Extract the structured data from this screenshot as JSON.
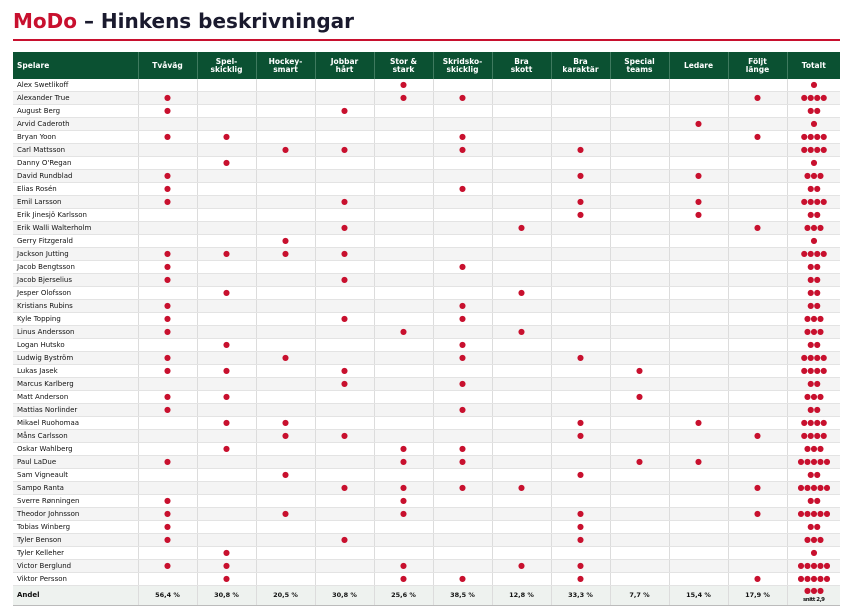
{
  "title": {
    "brand": "MoDo",
    "rest": " – Hinkens beskrivningar"
  },
  "columns": [
    "Spelare",
    "Tvåväg",
    "Spel-\nskicklig",
    "Hockey-\nsmart",
    "Jobbar\nhårt",
    "Stor &\nstark",
    "Skridsko-\nskicklig",
    "Bra\nskott",
    "Bra\nkaraktär",
    "Special\nteams",
    "Ledare",
    "Följt\nlänge",
    "Totalt"
  ],
  "dot_glyph": "●",
  "players": [
    {
      "name": "Alex Swetlikoff",
      "m": [
        0,
        0,
        0,
        0,
        1,
        0,
        0,
        0,
        0,
        0,
        0
      ]
    },
    {
      "name": "Alexander True",
      "m": [
        1,
        0,
        0,
        0,
        1,
        1,
        0,
        0,
        0,
        0,
        1
      ]
    },
    {
      "name": "August Berg",
      "m": [
        1,
        0,
        0,
        1,
        0,
        0,
        0,
        0,
        0,
        0,
        0
      ]
    },
    {
      "name": "Arvid Caderoth",
      "m": [
        0,
        0,
        0,
        0,
        0,
        0,
        0,
        0,
        0,
        1,
        0
      ]
    },
    {
      "name": "Bryan Yoon",
      "m": [
        1,
        1,
        0,
        0,
        0,
        1,
        0,
        0,
        0,
        0,
        1
      ]
    },
    {
      "name": "Carl Mattsson",
      "m": [
        0,
        0,
        1,
        1,
        0,
        1,
        0,
        1,
        0,
        0,
        0
      ]
    },
    {
      "name": "Danny O'Regan",
      "m": [
        0,
        1,
        0,
        0,
        0,
        0,
        0,
        0,
        0,
        0,
        0
      ]
    },
    {
      "name": "David Rundblad",
      "m": [
        1,
        0,
        0,
        0,
        0,
        0,
        0,
        1,
        0,
        1,
        0
      ]
    },
    {
      "name": "Elias Rosén",
      "m": [
        1,
        0,
        0,
        0,
        0,
        1,
        0,
        0,
        0,
        0,
        0
      ]
    },
    {
      "name": "Emil Larsson",
      "m": [
        1,
        0,
        0,
        1,
        0,
        0,
        0,
        1,
        0,
        1,
        0
      ]
    },
    {
      "name": "Erik Jinesjö Karlsson",
      "m": [
        0,
        0,
        0,
        0,
        0,
        0,
        0,
        1,
        0,
        1,
        0
      ]
    },
    {
      "name": "Erik Walli Walterholm",
      "m": [
        0,
        0,
        0,
        1,
        0,
        0,
        1,
        0,
        0,
        0,
        1
      ]
    },
    {
      "name": "Gerry Fitzgerald",
      "m": [
        0,
        0,
        1,
        0,
        0,
        0,
        0,
        0,
        0,
        0,
        0
      ]
    },
    {
      "name": "Jackson Jutting",
      "m": [
        1,
        1,
        1,
        1,
        0,
        0,
        0,
        0,
        0,
        0,
        0
      ]
    },
    {
      "name": "Jacob Bengtsson",
      "m": [
        1,
        0,
        0,
        0,
        0,
        1,
        0,
        0,
        0,
        0,
        0
      ]
    },
    {
      "name": "Jacob Bjerselius",
      "m": [
        1,
        0,
        0,
        1,
        0,
        0,
        0,
        0,
        0,
        0,
        0
      ]
    },
    {
      "name": "Jesper Olofsson",
      "m": [
        0,
        1,
        0,
        0,
        0,
        0,
        1,
        0,
        0,
        0,
        0
      ]
    },
    {
      "name": "Kristians Rubins",
      "m": [
        1,
        0,
        0,
        0,
        0,
        1,
        0,
        0,
        0,
        0,
        0
      ]
    },
    {
      "name": "Kyle Topping",
      "m": [
        1,
        0,
        0,
        1,
        0,
        1,
        0,
        0,
        0,
        0,
        0
      ]
    },
    {
      "name": "Linus Andersson",
      "m": [
        1,
        0,
        0,
        0,
        1,
        0,
        1,
        0,
        0,
        0,
        0
      ]
    },
    {
      "name": "Logan Hutsko",
      "m": [
        0,
        1,
        0,
        0,
        0,
        1,
        0,
        0,
        0,
        0,
        0
      ]
    },
    {
      "name": "Ludwig Byström",
      "m": [
        1,
        0,
        1,
        0,
        0,
        1,
        0,
        1,
        0,
        0,
        0
      ]
    },
    {
      "name": "Lukas Jasek",
      "m": [
        1,
        1,
        0,
        1,
        0,
        0,
        0,
        0,
        1,
        0,
        0
      ]
    },
    {
      "name": "Marcus Karlberg",
      "m": [
        0,
        0,
        0,
        1,
        0,
        1,
        0,
        0,
        0,
        0,
        0
      ]
    },
    {
      "name": "Matt Anderson",
      "m": [
        1,
        1,
        0,
        0,
        0,
        0,
        0,
        0,
        1,
        0,
        0
      ]
    },
    {
      "name": "Mattias Norlinder",
      "m": [
        1,
        0,
        0,
        0,
        0,
        1,
        0,
        0,
        0,
        0,
        0
      ]
    },
    {
      "name": "Mikael Ruohomaa",
      "m": [
        0,
        1,
        1,
        0,
        0,
        0,
        0,
        1,
        0,
        1,
        0
      ]
    },
    {
      "name": "Måns Carlsson",
      "m": [
        0,
        0,
        1,
        1,
        0,
        0,
        0,
        1,
        0,
        0,
        1
      ]
    },
    {
      "name": "Oskar Wahlberg",
      "m": [
        0,
        1,
        0,
        0,
        1,
        1,
        0,
        0,
        0,
        0,
        0
      ]
    },
    {
      "name": "Paul LaDue",
      "m": [
        1,
        0,
        0,
        0,
        1,
        1,
        0,
        0,
        1,
        1,
        0
      ]
    },
    {
      "name": "Sam Vigneault",
      "m": [
        0,
        0,
        1,
        0,
        0,
        0,
        0,
        1,
        0,
        0,
        0
      ]
    },
    {
      "name": "Sampo Ranta",
      "m": [
        0,
        0,
        0,
        1,
        1,
        1,
        1,
        0,
        0,
        0,
        1
      ]
    },
    {
      "name": "Sverre Rønningen",
      "m": [
        1,
        0,
        0,
        0,
        1,
        0,
        0,
        0,
        0,
        0,
        0
      ]
    },
    {
      "name": "Theodor Johnsson",
      "m": [
        1,
        0,
        1,
        0,
        1,
        0,
        0,
        1,
        0,
        0,
        1
      ]
    },
    {
      "name": "Tobias Winberg",
      "m": [
        1,
        0,
        0,
        0,
        0,
        0,
        0,
        1,
        0,
        0,
        0
      ]
    },
    {
      "name": "Tyler Benson",
      "m": [
        1,
        0,
        0,
        1,
        0,
        0,
        0,
        1,
        0,
        0,
        0
      ]
    },
    {
      "name": "Tyler Kelleher",
      "m": [
        0,
        1,
        0,
        0,
        0,
        0,
        0,
        0,
        0,
        0,
        0
      ]
    },
    {
      "name": "Victor Berglund",
      "m": [
        1,
        1,
        0,
        0,
        1,
        0,
        1,
        1,
        0,
        0,
        0
      ]
    },
    {
      "name": "Viktor Persson",
      "m": [
        0,
        1,
        0,
        0,
        1,
        1,
        0,
        1,
        0,
        0,
        1
      ]
    }
  ],
  "footer": {
    "label": "Andel",
    "shares": [
      "56,4 %",
      "30,8 %",
      "20,5 %",
      "30,8 %",
      "25,6 %",
      "38,5 %",
      "12,8 %",
      "33,3 %",
      "7,7 %",
      "15,4 %",
      "17,9 %"
    ],
    "total_dots": 3,
    "average": "snitt 2,9"
  },
  "colors": {
    "accent": "#c8102e",
    "header_bg": "#0b5132",
    "title": "#1a1a2e"
  }
}
